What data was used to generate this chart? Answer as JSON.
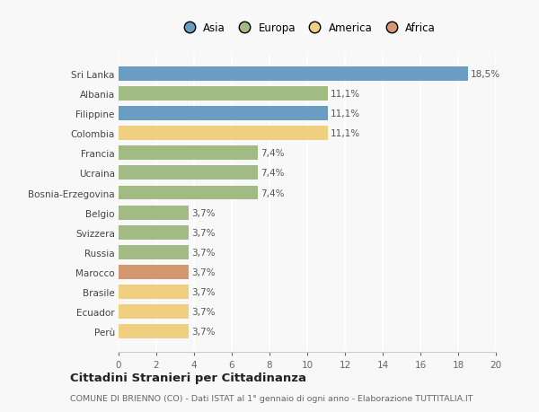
{
  "countries": [
    "Sri Lanka",
    "Albania",
    "Filippine",
    "Colombia",
    "Francia",
    "Ucraina",
    "Bosnia-Erzegovina",
    "Belgio",
    "Svizzera",
    "Russia",
    "Marocco",
    "Brasile",
    "Ecuador",
    "Perù"
  ],
  "values": [
    18.5,
    11.1,
    11.1,
    11.1,
    7.4,
    7.4,
    7.4,
    3.7,
    3.7,
    3.7,
    3.7,
    3.7,
    3.7,
    3.7
  ],
  "labels": [
    "18,5%",
    "11,1%",
    "11,1%",
    "11,1%",
    "7,4%",
    "7,4%",
    "7,4%",
    "3,7%",
    "3,7%",
    "3,7%",
    "3,7%",
    "3,7%",
    "3,7%",
    "3,7%"
  ],
  "colors": [
    "#6b9dc2",
    "#a2bb84",
    "#6b9dc2",
    "#f0d080",
    "#a2bb84",
    "#a2bb84",
    "#a2bb84",
    "#a2bb84",
    "#a2bb84",
    "#a2bb84",
    "#d49870",
    "#f0d080",
    "#f0d080",
    "#f0d080"
  ],
  "continent_colors": {
    "Asia": "#6b9dc2",
    "Europa": "#a2bb84",
    "America": "#f0d080",
    "Africa": "#d49870"
  },
  "title": "Cittadini Stranieri per Cittadinanza",
  "subtitle": "COMUNE DI BRIENNO (CO) - Dati ISTAT al 1° gennaio di ogni anno - Elaborazione TUTTITALIA.IT",
  "xlim": [
    0,
    20
  ],
  "xticks": [
    0,
    2,
    4,
    6,
    8,
    10,
    12,
    14,
    16,
    18,
    20
  ],
  "background_color": "#f8f8f8",
  "grid_color": "#ffffff",
  "bar_height": 0.72,
  "label_fontsize": 7.5,
  "ytick_fontsize": 7.5,
  "xtick_fontsize": 7.5
}
